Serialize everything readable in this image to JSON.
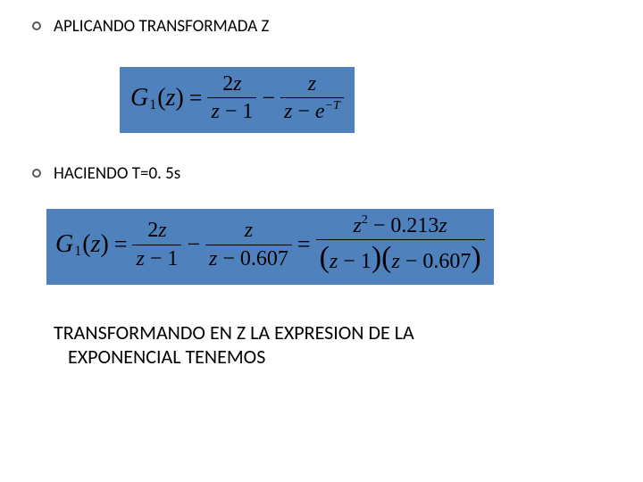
{
  "slide": {
    "bullets": [
      {
        "text": "APLICANDO TRANSFORMADA Z"
      },
      {
        "text": "HACIENDO T=0. 5s"
      }
    ],
    "bottom": {
      "line1": "TRANSFORMANDO EN Z LA EXPRESION DE LA",
      "line2": "EXPONENCIAL TENEMOS"
    }
  },
  "eq_box_color": "#4f81bd",
  "formula1": {
    "lhs_var": "G",
    "lhs_sub": "1",
    "lhs_arg": "z",
    "terms": [
      {
        "num": "2z",
        "den_left": "z",
        "den_op": "−",
        "den_right": "1"
      },
      {
        "num": "z",
        "den_left": "z",
        "den_op": "−",
        "den_right_base": "e",
        "den_right_sup": "−T"
      }
    ]
  },
  "formula2": {
    "lhs_var": "G",
    "lhs_sub": "1",
    "lhs_arg": "z",
    "terms": [
      {
        "num": "2z",
        "den_left": "z",
        "den_op": "−",
        "den_right": "1"
      },
      {
        "num": "z",
        "den_left": "z",
        "den_op": "−",
        "den_right": "0.607"
      }
    ],
    "rhs": {
      "num_a": "z",
      "num_a_sup": "2",
      "num_op": "−",
      "num_b": "0.213",
      "num_c": "z",
      "den_p1_left": "z",
      "den_p1_op": "−",
      "den_p1_right": "1",
      "den_p2_left": "z",
      "den_p2_op": "−",
      "den_p2_right": "0.607"
    }
  }
}
